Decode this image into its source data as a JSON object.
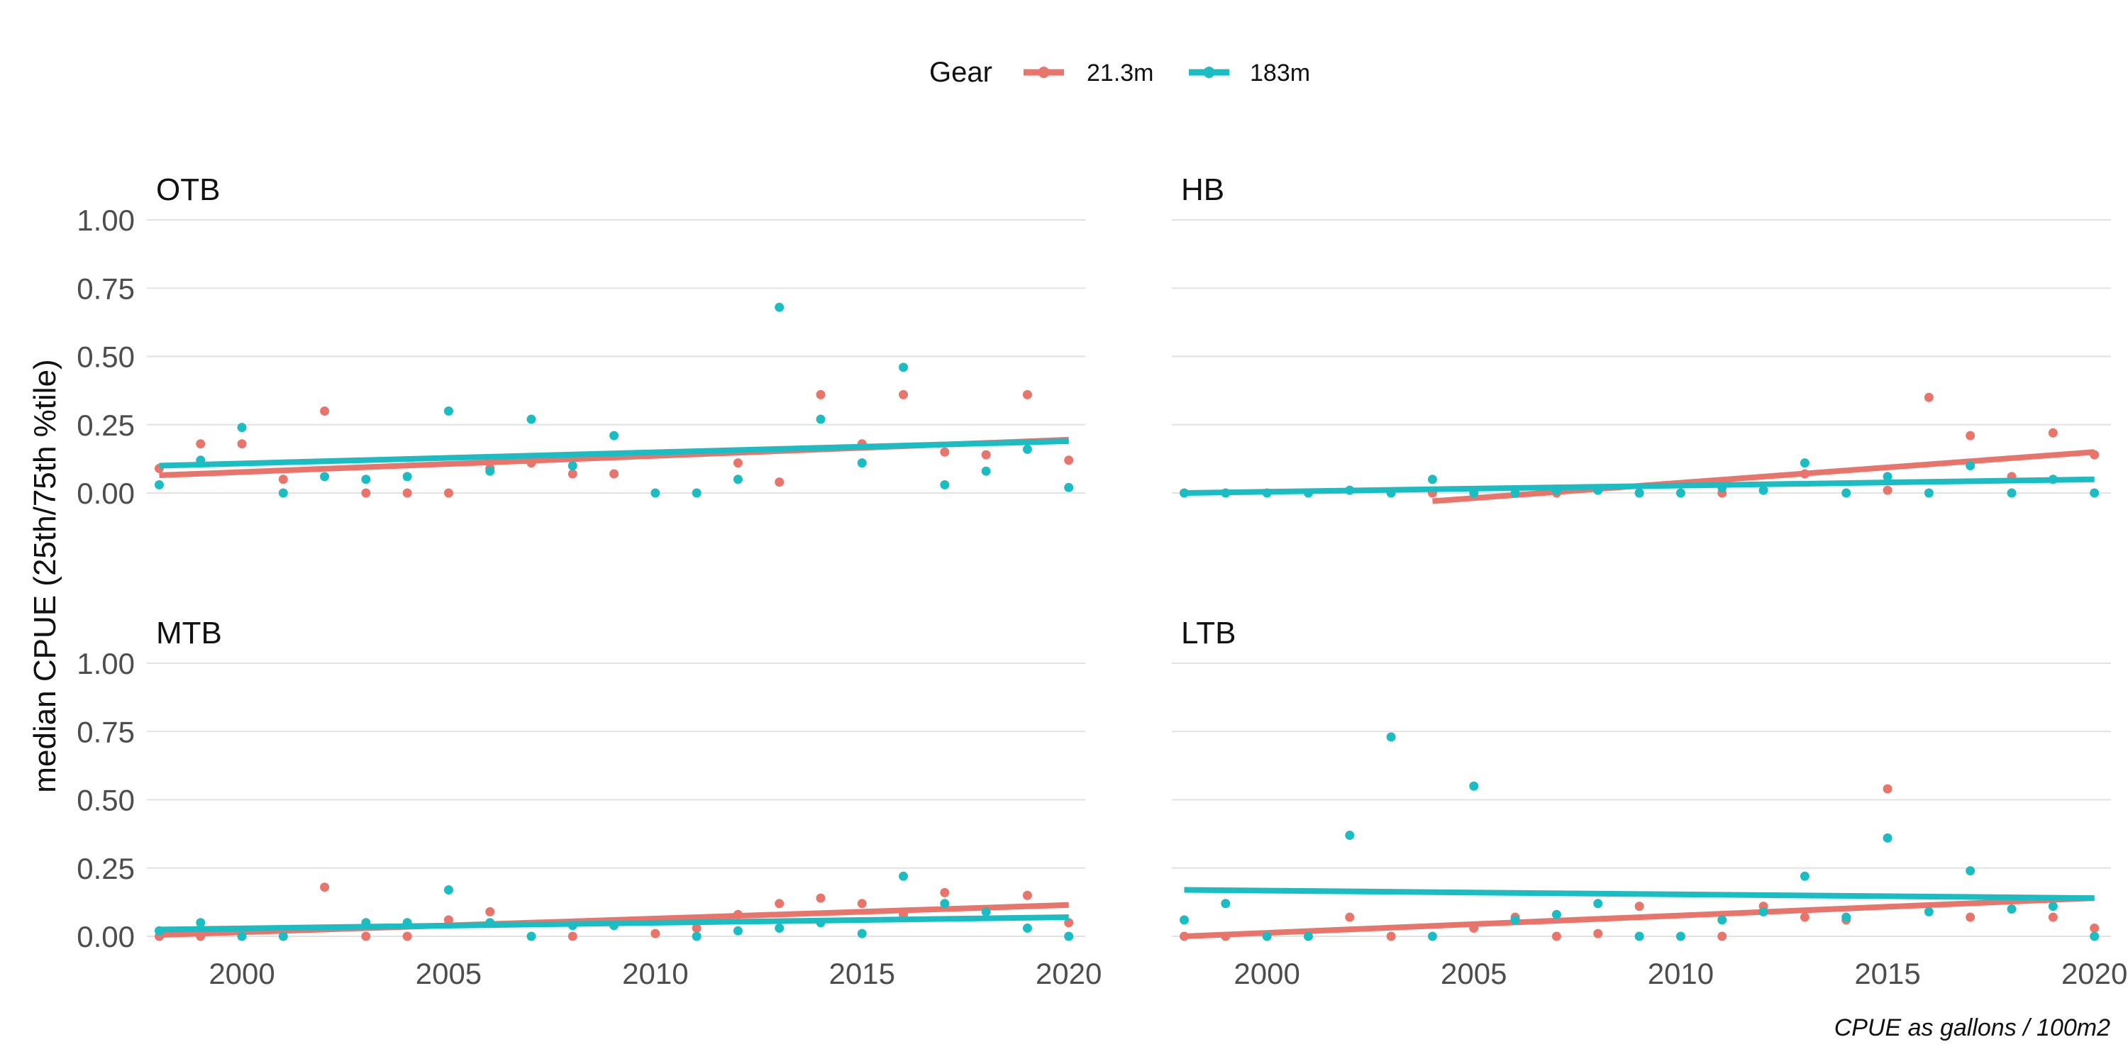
{
  "legend": {
    "title": "Gear",
    "entries": [
      {
        "label": "21.3m",
        "color": "#E8756B"
      },
      {
        "label": "183m",
        "color": "#1CBDC2"
      }
    ]
  },
  "caption": "CPUE as gallons / 100m2",
  "chart_data": {
    "type": "scatter",
    "title": "",
    "xlabel": "",
    "ylabel": "median CPUE (25th/75th %tile)",
    "xlim": [
      1997.7,
      2020.4
    ],
    "ylim": [
      0,
      1.0
    ],
    "x_ticks": [
      "2000",
      "2005",
      "2010",
      "2015",
      "2020"
    ],
    "y_ticks": [
      "0.00",
      "0.25",
      "0.50",
      "0.75",
      "1.00"
    ],
    "grid": true,
    "legend_position": "top",
    "facets": [
      {
        "title": "OTB",
        "series": [
          {
            "name": "21.3m",
            "x": [
              1998,
              1999,
              2000,
              2001,
              2002,
              2003,
              2004,
              2005,
              2006,
              2007,
              2008,
              2009,
              2012,
              2013,
              2014,
              2015,
              2016,
              2017,
              2018,
              2019,
              2020
            ],
            "y": [
              0.09,
              0.18,
              0.18,
              0.05,
              0.3,
              0.0,
              0.0,
              0.0,
              0.09,
              0.11,
              0.07,
              0.07,
              0.11,
              0.04,
              0.36,
              0.18,
              0.36,
              0.15,
              0.14,
              0.36,
              0.12
            ],
            "fit": [
              0.065,
              0.195
            ]
          },
          {
            "name": "183m",
            "x": [
              1998,
              1999,
              2000,
              2001,
              2002,
              2003,
              2004,
              2005,
              2006,
              2007,
              2008,
              2009,
              2010,
              2011,
              2012,
              2013,
              2014,
              2015,
              2016,
              2017,
              2018,
              2019,
              2020
            ],
            "y": [
              0.03,
              0.12,
              0.24,
              0.0,
              0.06,
              0.05,
              0.06,
              0.3,
              0.08,
              0.27,
              0.1,
              0.21,
              0.0,
              0.0,
              0.05,
              0.68,
              0.27,
              0.11,
              0.46,
              0.03,
              0.08,
              0.16,
              0.02
            ],
            "fit": [
              0.1,
              0.19
            ]
          }
        ]
      },
      {
        "title": "HB",
        "series": [
          {
            "name": "21.3m",
            "x": [
              2004,
              2007,
              2009,
              2011,
              2013,
              2015,
              2016,
              2017,
              2018,
              2019,
              2020
            ],
            "y": [
              0.0,
              0.0,
              0.0,
              0.0,
              0.07,
              0.01,
              0.35,
              0.21,
              0.06,
              0.22,
              0.14
            ],
            "fit": [
              -0.03,
              0.15
            ]
          },
          {
            "name": "183m",
            "x": [
              1998,
              1999,
              2000,
              2001,
              2002,
              2003,
              2004,
              2005,
              2006,
              2007,
              2008,
              2009,
              2010,
              2011,
              2012,
              2013,
              2014,
              2015,
              2016,
              2017,
              2018,
              2019,
              2020
            ],
            "y": [
              0.0,
              0.0,
              0.0,
              0.0,
              0.01,
              0.0,
              0.05,
              0.0,
              0.0,
              0.01,
              0.01,
              0.0,
              0.0,
              0.02,
              0.01,
              0.11,
              0.0,
              0.06,
              0.0,
              0.1,
              0.0,
              0.05,
              0.0
            ],
            "fit": [
              0.0,
              0.05
            ]
          }
        ]
      },
      {
        "title": "MTB",
        "series": [
          {
            "name": "21.3m",
            "x": [
              1998,
              1999,
              2002,
              2003,
              2004,
              2005,
              2006,
              2008,
              2010,
              2011,
              2012,
              2013,
              2014,
              2015,
              2016,
              2017,
              2019,
              2020
            ],
            "y": [
              0.0,
              0.0,
              0.18,
              0.0,
              0.0,
              0.06,
              0.09,
              0.0,
              0.01,
              0.03,
              0.08,
              0.12,
              0.14,
              0.12,
              0.08,
              0.16,
              0.15,
              0.05
            ],
            "fit": [
              0.005,
              0.115
            ]
          },
          {
            "name": "183m",
            "x": [
              1998,
              1999,
              2000,
              2001,
              2003,
              2004,
              2005,
              2006,
              2007,
              2008,
              2009,
              2011,
              2012,
              2013,
              2014,
              2015,
              2016,
              2017,
              2018,
              2019,
              2020
            ],
            "y": [
              0.02,
              0.05,
              0.0,
              0.0,
              0.05,
              0.05,
              0.17,
              0.05,
              0.0,
              0.04,
              0.04,
              0.0,
              0.02,
              0.03,
              0.05,
              0.01,
              0.22,
              0.12,
              0.09,
              0.03,
              0.0
            ],
            "fit": [
              0.025,
              0.07
            ]
          }
        ]
      },
      {
        "title": "LTB",
        "series": [
          {
            "name": "21.3m",
            "x": [
              1998,
              1999,
              2002,
              2003,
              2005,
              2006,
              2007,
              2008,
              2009,
              2011,
              2012,
              2013,
              2014,
              2015,
              2017,
              2019,
              2020
            ],
            "y": [
              0.0,
              0.0,
              0.07,
              0.0,
              0.03,
              0.07,
              0.0,
              0.01,
              0.11,
              0.0,
              0.11,
              0.07,
              0.06,
              0.54,
              0.07,
              0.07,
              0.03
            ],
            "fit": [
              0.0,
              0.14
            ]
          },
          {
            "name": "183m",
            "x": [
              1998,
              1999,
              2000,
              2001,
              2002,
              2003,
              2004,
              2005,
              2006,
              2007,
              2008,
              2009,
              2010,
              2011,
              2012,
              2013,
              2014,
              2015,
              2016,
              2017,
              2018,
              2019,
              2020
            ],
            "y": [
              0.06,
              0.12,
              0.0,
              0.0,
              0.37,
              0.73,
              0.0,
              0.55,
              0.06,
              0.08,
              0.12,
              0.0,
              0.0,
              0.06,
              0.09,
              0.22,
              0.07,
              0.36,
              0.09,
              0.24,
              0.1,
              0.11,
              0.0
            ],
            "fit": [
              0.17,
              0.14
            ]
          }
        ]
      }
    ]
  }
}
